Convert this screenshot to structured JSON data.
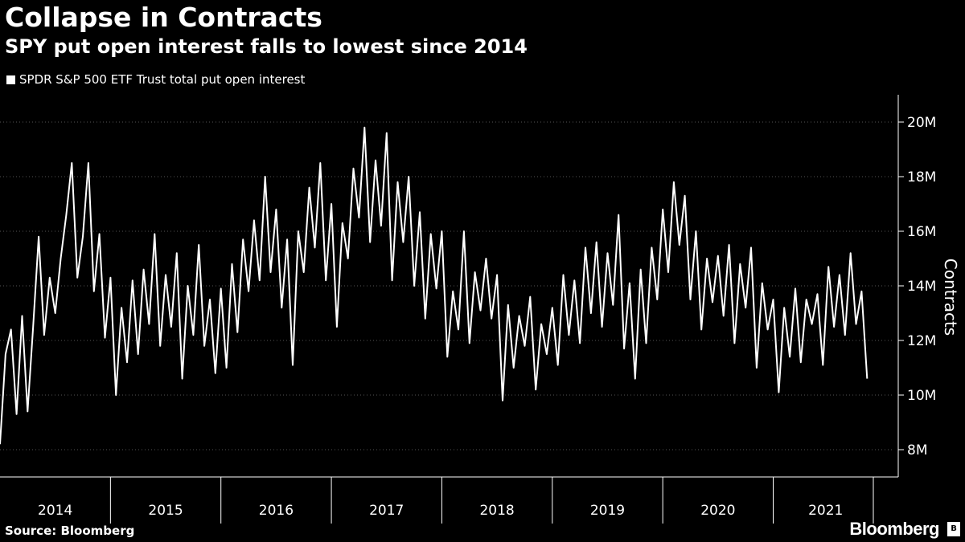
{
  "title": "Collapse in Contracts",
  "subtitle": "SPY put open interest falls to lowest since 2014",
  "source": "Source: Bloomberg",
  "brand": "Bloomberg",
  "colors": {
    "background": "#000000",
    "line": "#ffffff",
    "grid": "#444444"
  },
  "chart_data": {
    "type": "line",
    "title": "Collapse in Contracts",
    "subtitle": "SPY put open interest falls to lowest since 2014",
    "ylabel": "Contracts",
    "xlabel": "",
    "y_axis_position": "right",
    "ylim": [
      7000000,
      21000000
    ],
    "yticks": [
      8000000,
      10000000,
      12000000,
      14000000,
      16000000,
      18000000,
      20000000
    ],
    "ytick_labels": [
      "8M",
      "10M",
      "12M",
      "14M",
      "16M",
      "18M",
      "20M"
    ],
    "xlim": [
      2014.0,
      2021.95
    ],
    "xtick_labels": [
      "2014",
      "2015",
      "2016",
      "2017",
      "2018",
      "2019",
      "2020",
      "2021"
    ],
    "grid": "horizontal dotted",
    "legend": "top-left",
    "series": [
      {
        "name": "SPDR S&P 500 ETF Trust total put open interest",
        "x": [
          2014.0,
          2014.05,
          2014.1,
          2014.15,
          2014.2,
          2014.25,
          2014.3,
          2014.35,
          2014.4,
          2014.45,
          2014.5,
          2014.55,
          2014.6,
          2014.65,
          2014.7,
          2014.75,
          2014.8,
          2014.85,
          2014.9,
          2014.95,
          2015.0,
          2015.05,
          2015.1,
          2015.15,
          2015.2,
          2015.25,
          2015.3,
          2015.35,
          2015.4,
          2015.45,
          2015.5,
          2015.55,
          2015.6,
          2015.65,
          2015.7,
          2015.75,
          2015.8,
          2015.85,
          2015.9,
          2015.95,
          2016.0,
          2016.05,
          2016.1,
          2016.15,
          2016.2,
          2016.25,
          2016.3,
          2016.35,
          2016.4,
          2016.45,
          2016.5,
          2016.55,
          2016.6,
          2016.65,
          2016.7,
          2016.75,
          2016.8,
          2016.85,
          2016.9,
          2016.95,
          2017.0,
          2017.05,
          2017.1,
          2017.15,
          2017.2,
          2017.25,
          2017.3,
          2017.35,
          2017.4,
          2017.45,
          2017.5,
          2017.55,
          2017.6,
          2017.65,
          2017.7,
          2017.75,
          2017.8,
          2017.85,
          2017.9,
          2017.95,
          2018.0,
          2018.05,
          2018.1,
          2018.15,
          2018.2,
          2018.25,
          2018.3,
          2018.35,
          2018.4,
          2018.45,
          2018.5,
          2018.55,
          2018.6,
          2018.65,
          2018.7,
          2018.75,
          2018.8,
          2018.85,
          2018.9,
          2018.95,
          2019.0,
          2019.05,
          2019.1,
          2019.15,
          2019.2,
          2019.25,
          2019.3,
          2019.35,
          2019.4,
          2019.45,
          2019.5,
          2019.55,
          2019.6,
          2019.65,
          2019.7,
          2019.75,
          2019.8,
          2019.85,
          2019.9,
          2019.95,
          2020.0,
          2020.05,
          2020.1,
          2020.15,
          2020.2,
          2020.25,
          2020.3,
          2020.35,
          2020.4,
          2020.45,
          2020.5,
          2020.55,
          2020.6,
          2020.65,
          2020.7,
          2020.75,
          2020.8,
          2020.85,
          2020.9,
          2020.95,
          2021.0,
          2021.05,
          2021.1,
          2021.15,
          2021.2,
          2021.25,
          2021.3,
          2021.35,
          2021.4,
          2021.45,
          2021.5,
          2021.55,
          2021.6,
          2021.65,
          2021.7,
          2021.75,
          2021.8,
          2021.85
        ],
        "values": [
          8200000,
          11500000,
          12400000,
          9300000,
          12900000,
          9400000,
          12500000,
          15800000,
          12200000,
          14300000,
          13000000,
          15000000,
          16600000,
          18500000,
          14300000,
          15800000,
          18500000,
          13800000,
          15900000,
          12100000,
          14300000,
          10000000,
          13200000,
          11200000,
          14200000,
          11500000,
          14600000,
          12600000,
          15900000,
          11800000,
          14400000,
          12500000,
          15200000,
          10600000,
          14000000,
          12200000,
          15500000,
          11800000,
          13500000,
          10800000,
          13900000,
          11000000,
          14800000,
          12300000,
          15700000,
          13800000,
          16400000,
          14200000,
          18000000,
          14500000,
          16800000,
          13200000,
          15700000,
          11100000,
          16000000,
          14500000,
          17600000,
          15400000,
          18500000,
          14200000,
          17000000,
          12500000,
          16300000,
          15000000,
          18300000,
          16500000,
          19800000,
          15600000,
          18600000,
          16200000,
          19600000,
          14200000,
          17800000,
          15600000,
          18000000,
          14000000,
          16700000,
          12800000,
          15900000,
          13900000,
          16000000,
          11400000,
          13800000,
          12400000,
          16000000,
          11900000,
          14500000,
          13100000,
          15000000,
          12800000,
          14400000,
          9800000,
          13300000,
          11000000,
          12900000,
          11800000,
          13600000,
          10200000,
          12600000,
          11500000,
          13200000,
          11100000,
          14400000,
          12200000,
          14200000,
          11900000,
          15400000,
          13000000,
          15600000,
          12500000,
          15200000,
          13300000,
          16600000,
          11700000,
          14100000,
          10600000,
          14600000,
          11900000,
          15400000,
          13500000,
          16800000,
          14500000,
          17800000,
          15500000,
          17300000,
          13500000,
          16000000,
          12400000,
          15000000,
          13400000,
          15100000,
          12900000,
          15500000,
          11900000,
          14800000,
          13200000,
          15400000,
          11000000,
          14100000,
          12400000,
          13500000,
          10100000,
          13200000,
          11400000,
          13900000,
          11200000,
          13500000,
          12600000,
          13700000,
          11100000,
          14700000,
          12500000,
          14400000,
          12200000,
          15200000,
          12600000,
          13800000,
          10600000
        ]
      }
    ]
  }
}
